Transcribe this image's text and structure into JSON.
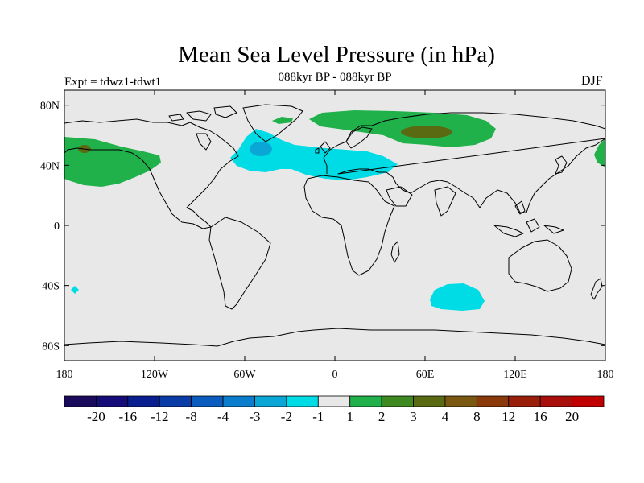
{
  "title": "Mean Sea Level Pressure (in hPa)",
  "subtitle": "088kyr BP - 088kyr BP",
  "experiment": "Expt = tdwz1-tdwt1",
  "season": "DJF",
  "map": {
    "projection": "cylindrical equidistant",
    "lon_range": [
      -180,
      180
    ],
    "lat_range": [
      -90,
      90
    ],
    "lat_ticks": [
      {
        "value": 80,
        "label": "80N"
      },
      {
        "value": 40,
        "label": "40N"
      },
      {
        "value": 0,
        "label": "0"
      },
      {
        "value": -40,
        "label": "40S"
      },
      {
        "value": -80,
        "label": "80S"
      }
    ],
    "lon_ticks": [
      {
        "value": -180,
        "label": "180"
      },
      {
        "value": -120,
        "label": "120W"
      },
      {
        "value": -60,
        "label": "60W"
      },
      {
        "value": 0,
        "label": "0"
      },
      {
        "value": 60,
        "label": "60E"
      },
      {
        "value": 120,
        "label": "120E"
      },
      {
        "value": 180,
        "label": "180"
      }
    ],
    "background_color": "#e8e8e8"
  },
  "colorbar": {
    "colors": [
      "#1a0a5c",
      "#140c78",
      "#0a1f8f",
      "#0a3ca8",
      "#0a5dbf",
      "#0a7ecc",
      "#0aa7d6",
      "#00dce6",
      "#e8e8e8",
      "#21b14a",
      "#3e8a20",
      "#5a6a12",
      "#7a5812",
      "#8a3a0a",
      "#9a1f0a",
      "#a80f0a",
      "#c00000"
    ],
    "labels": [
      "-20",
      "-16",
      "-12",
      "-8",
      "-4",
      "-3",
      "-2",
      "-1",
      "1",
      "2",
      "3",
      "4",
      "8",
      "12",
      "16",
      "20"
    ]
  }
}
